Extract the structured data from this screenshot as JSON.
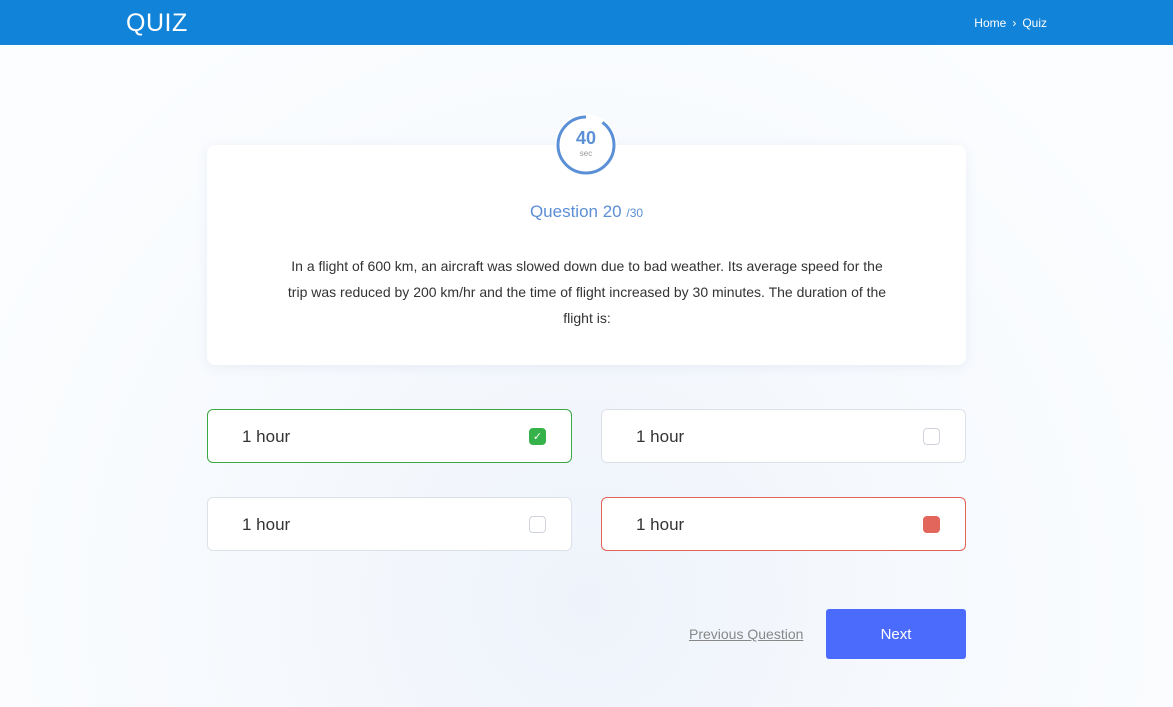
{
  "header": {
    "logo": "QUIZ",
    "breadcrumb": [
      "Home",
      "Quiz"
    ],
    "separator_icon": "chevron-right-icon"
  },
  "timer": {
    "value": "40",
    "unit": "sec",
    "progress": 0.9,
    "color": "#5b8fd6"
  },
  "question": {
    "label": "Question 20",
    "total": "/30",
    "text": "In a flight of 600 km, an aircraft was slowed down due to bad weather. Its average speed for the trip was reduced by 200 km/hr and the time of flight increased by 30 minutes. The duration of the flight is:"
  },
  "options": [
    {
      "label": "1 hour",
      "state": "correct"
    },
    {
      "label": "1 hour",
      "state": "unselected"
    },
    {
      "label": "1 hour",
      "state": "unselected"
    },
    {
      "label": "1 hour",
      "state": "wrong"
    }
  ],
  "nav": {
    "previous": "Previous Question",
    "next": "Next"
  },
  "colors": {
    "header": "#1183d8",
    "correct": "#36b24a",
    "wrong": "#e2665c",
    "next": "#4a6bfb"
  }
}
